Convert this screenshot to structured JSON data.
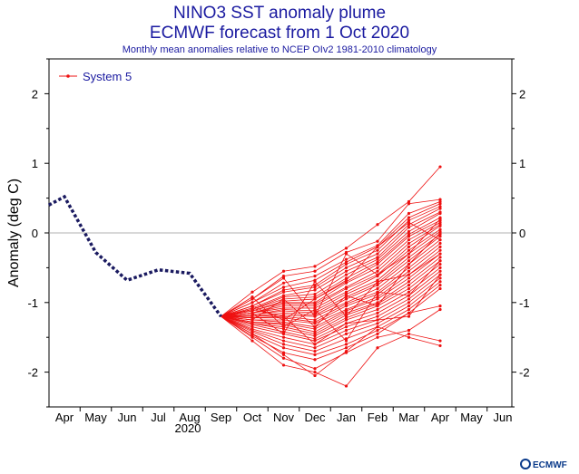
{
  "title_line1": "NINO3 SST anomaly plume",
  "title_line2": "ECMWF forecast from 1 Oct 2020",
  "subtitle": "Monthly mean anomalies relative to NCEP OIv2 1981-2010 climatology",
  "logo_text": "ECMWF",
  "colors": {
    "ensemble": "#ee1111",
    "observed": "#1a1a60",
    "title": "#1a1aa0",
    "zero_line": "#999999"
  },
  "chart_data": {
    "type": "line",
    "ylabel": "Anomaly (deg C)",
    "ylim": [
      -2.5,
      2.5
    ],
    "y_ticks": [
      -2,
      -1,
      0,
      1,
      2
    ],
    "month_labels": [
      "Apr",
      "May",
      "Jun",
      "Jul",
      "Aug",
      "Sep",
      "Oct",
      "Nov",
      "Dec",
      "Jan",
      "Feb",
      "Mar",
      "Apr",
      "May",
      "Jun"
    ],
    "year_label": "2020",
    "legend": {
      "label": "System 5",
      "position": "top-left"
    },
    "observed": {
      "x": [
        -0.5,
        0,
        1,
        2,
        3,
        4,
        5
      ],
      "y": [
        0.4,
        0.52,
        -0.28,
        -0.68,
        -0.53,
        -0.58,
        -1.2
      ]
    },
    "ensemble_start": {
      "x": 5,
      "y": -1.2
    },
    "ensemble_x": [
      6,
      7,
      8,
      9,
      10,
      11,
      12
    ],
    "members": [
      [
        -0.85,
        -0.55,
        -0.48,
        -0.22,
        0.12,
        0.45,
        0.95
      ],
      [
        -0.95,
        -0.62,
        -0.55,
        -0.28,
        -0.12,
        0.42,
        0.48
      ],
      [
        -1.0,
        -0.72,
        -0.62,
        -0.38,
        -0.18,
        0.28,
        0.45
      ],
      [
        -1.0,
        -0.78,
        -0.68,
        -0.42,
        -0.2,
        0.22,
        0.42
      ],
      [
        -1.05,
        -0.82,
        -0.75,
        -0.45,
        -0.25,
        0.18,
        0.38
      ],
      [
        -1.05,
        -0.85,
        -0.78,
        -0.5,
        -0.3,
        0.12,
        0.35
      ],
      [
        -1.08,
        -0.9,
        -0.82,
        -0.55,
        -0.35,
        0.08,
        0.3
      ],
      [
        -1.1,
        -0.92,
        -0.88,
        -0.6,
        -0.38,
        0.02,
        0.28
      ],
      [
        -1.1,
        -0.95,
        -0.92,
        -0.65,
        -0.42,
        -0.02,
        0.22
      ],
      [
        -1.12,
        -0.98,
        -0.95,
        -0.7,
        -0.45,
        -0.05,
        0.18
      ],
      [
        -1.12,
        -1.0,
        -1.0,
        -0.72,
        -0.5,
        -0.1,
        0.15
      ],
      [
        -1.15,
        -1.02,
        -1.02,
        -0.78,
        -0.55,
        -0.15,
        0.12
      ],
      [
        -1.15,
        -1.05,
        -1.05,
        -0.8,
        -0.6,
        -0.2,
        0.1
      ],
      [
        -1.15,
        -1.08,
        -1.08,
        -0.85,
        -0.62,
        -0.25,
        0.05
      ],
      [
        -1.18,
        -1.1,
        -1.12,
        -0.88,
        -0.68,
        -0.3,
        0.02
      ],
      [
        -1.18,
        -1.12,
        -1.15,
        -0.92,
        -0.72,
        -0.35,
        -0.02
      ],
      [
        -1.2,
        -1.15,
        -1.18,
        -0.95,
        -0.75,
        -0.4,
        -0.05
      ],
      [
        -1.2,
        -1.18,
        -1.2,
        -1.0,
        -0.8,
        -0.45,
        -0.1
      ],
      [
        -1.22,
        -1.2,
        -1.25,
        -1.02,
        -0.85,
        -0.5,
        -0.15
      ],
      [
        -1.22,
        -1.22,
        -1.28,
        -1.05,
        -0.88,
        -0.55,
        -0.2
      ],
      [
        -1.25,
        -1.25,
        -1.3,
        -1.1,
        -0.92,
        -0.6,
        -0.25
      ],
      [
        -1.25,
        -1.28,
        -1.35,
        -1.12,
        -0.95,
        -0.65,
        -0.3
      ],
      [
        -1.28,
        -1.3,
        -1.38,
        -1.15,
        -1.0,
        -0.7,
        -0.35
      ],
      [
        -1.28,
        -1.32,
        -1.42,
        -1.18,
        -1.02,
        -0.75,
        -0.4
      ],
      [
        -1.3,
        -1.35,
        -1.45,
        -1.22,
        -1.05,
        -0.8,
        -0.45
      ],
      [
        -1.3,
        -1.38,
        -1.48,
        -1.25,
        -1.1,
        -0.85,
        -0.5
      ],
      [
        -1.32,
        -1.42,
        -1.52,
        -1.3,
        -1.15,
        -0.9,
        -0.55
      ],
      [
        -1.35,
        -1.45,
        -1.55,
        -1.35,
        -1.2,
        -0.95,
        -0.6
      ],
      [
        -1.38,
        -1.5,
        -1.6,
        -1.4,
        -1.25,
        -1.0,
        -0.65
      ],
      [
        -1.4,
        -1.55,
        -1.65,
        -1.45,
        -1.3,
        -1.05,
        -0.7
      ],
      [
        -1.42,
        -1.6,
        -1.7,
        -1.52,
        -1.35,
        -1.1,
        -0.75
      ],
      [
        -1.45,
        -1.65,
        -1.75,
        -1.6,
        -1.4,
        -1.15,
        -0.8
      ],
      [
        -1.48,
        -1.72,
        -1.82,
        -1.65,
        -1.45,
        -1.15,
        -1.05
      ],
      [
        -1.5,
        -1.8,
        -1.95,
        -1.72,
        -1.5,
        -1.4,
        -1.1
      ],
      [
        -1.55,
        -1.9,
        -2.0,
        -2.2,
        -1.65,
        -1.45,
        -1.55
      ],
      [
        -1.45,
        -1.75,
        -2.05,
        -1.7,
        -1.35,
        -1.5,
        -1.62
      ],
      [
        -1.1,
        -1.2,
        -1.6,
        -1.3,
        -1.25,
        -1.2,
        -0.6
      ],
      [
        -0.92,
        -1.35,
        -1.1,
        -1.55,
        -0.85,
        -0.9,
        -0.4
      ],
      [
        -0.95,
        -0.65,
        -1.2,
        -0.3,
        -0.6,
        -0.3,
        0.2
      ],
      [
        -1.05,
        -1.25,
        -0.95,
        -0.68,
        -0.2,
        0.15,
        -0.1
      ],
      [
        -1.25,
        -0.95,
        -1.35,
        -0.9,
        -1.05,
        -0.45,
        0.0
      ],
      [
        -1.15,
        -1.45,
        -0.7,
        -1.2,
        -0.7,
        -0.6,
        -0.3
      ]
    ]
  }
}
